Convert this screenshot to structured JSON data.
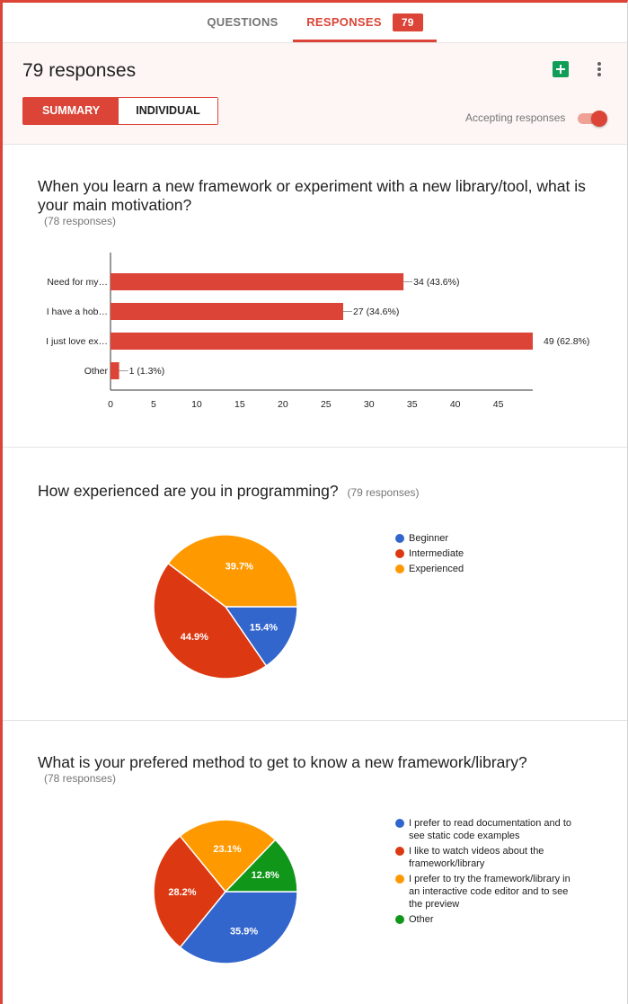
{
  "tabs": {
    "questions": "QUESTIONS",
    "responses": "RESPONSES",
    "response_count": "79"
  },
  "header": {
    "title": "79 responses",
    "summary_label": "SUMMARY",
    "individual_label": "INDIVIDUAL",
    "accepting_label": "Accepting responses",
    "accepting_on": true,
    "icons": [
      "sheets-icon",
      "more-vert-icon"
    ]
  },
  "colors": {
    "accent": "#db4437",
    "bar": "#db4437",
    "beginner": "#3366cc",
    "intermediate": "#dc3912",
    "experienced": "#ff9900",
    "other": "#109618"
  },
  "q1": {
    "title": "When you learn a new framework or experiment with a new library/tool, what is your main motivation?",
    "responses": "(78 responses)"
  },
  "q2": {
    "title": "How experienced are you in programming?",
    "responses": "(79 responses)"
  },
  "q3": {
    "title": "What is your prefered method to get to know a new framework/library?",
    "responses": "(78 responses)"
  },
  "chart_data": [
    {
      "type": "bar",
      "orientation": "horizontal",
      "categories": [
        "Need for my…",
        "I have a hob…",
        "I just love ex…",
        "Other"
      ],
      "values": [
        34,
        27,
        49,
        1
      ],
      "value_labels": [
        "34 (43.6%)",
        "27 (34.6%)",
        "49 (62.8%)",
        "1 (1.3%)"
      ],
      "x_ticks": [
        0,
        5,
        10,
        15,
        20,
        25,
        30,
        35,
        40,
        45
      ],
      "xlim": [
        0,
        49
      ]
    },
    {
      "type": "pie",
      "labels": [
        "Beginner",
        "Intermediate",
        "Experienced"
      ],
      "values": [
        15.4,
        44.9,
        39.7
      ],
      "value_labels": [
        "15.4%",
        "44.9%",
        "39.7%"
      ],
      "colors": [
        "#3366cc",
        "#dc3912",
        "#ff9900"
      ],
      "legend": "right"
    },
    {
      "type": "pie",
      "labels": [
        "I prefer to read documentation and to see static code examples",
        "I like to watch videos about the framework/library",
        "I prefer to try the framework/library in an interactive code editor and to see the preview",
        "Other"
      ],
      "legend_lines": [
        [
          "I prefer to read documentation and to",
          "see static code examples"
        ],
        [
          "I like to watch videos about the",
          "framework/library"
        ],
        [
          "I prefer to try the framework/library in",
          "an interactive code editor and to see",
          "the preview"
        ],
        [
          "Other"
        ]
      ],
      "values": [
        35.9,
        28.2,
        23.1,
        12.8
      ],
      "value_labels": [
        "35.9%",
        "28.2%",
        "23.1%",
        "12.8%"
      ],
      "colors": [
        "#3366cc",
        "#dc3912",
        "#ff9900",
        "#109618"
      ],
      "legend": "right"
    }
  ]
}
